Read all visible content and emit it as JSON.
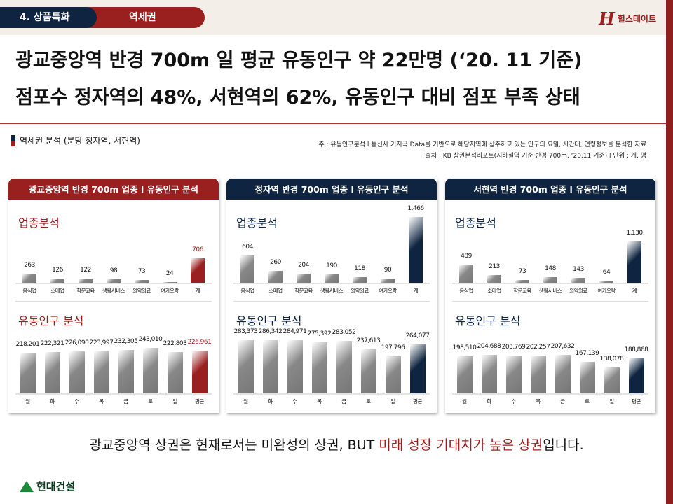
{
  "header": {
    "section_tab": "4. 상품특화",
    "sub_tab": "역세권",
    "logo_text": "힐스테이트",
    "logo_mark": "H"
  },
  "headline": {
    "line1": "광교중앙역 반경 700m 일 평균 유동인구 약 22만명 (‘20. 11 기준)",
    "line2": "점포수 정자역의 48%, 서현역의 62%, 유동인구 대비 점포 부족 상태"
  },
  "section": {
    "title": "역세권 분석 (분당 정자역, 서현역)",
    "note1": "주 : 유동인구분석 l 통신사 기지국 Data를 기반으로 해당지역에 상주하고 있는 인구의 요일, 시간대, 연령정보를 분석한 자료",
    "note2": "출처 : KB 상권분석리포트(지하철역 기준 반경 700m, ‘20.11 기준) l 단위 : 개, 명"
  },
  "colors": {
    "red": "#9a2020",
    "navy": "#0e2440"
  },
  "chart_data": [
    {
      "panel": "광교중앙역 반경 700m 업종 l 유동인구 분석",
      "accent": "#9a2020",
      "charts": [
        {
          "type": "bar",
          "title": "업종분석",
          "categories": [
            "음식업",
            "소매업",
            "학문교육",
            "생활서비스",
            "의약의료",
            "여가오락",
            "계"
          ],
          "values": [
            263,
            126,
            122,
            98,
            73,
            24,
            706
          ],
          "labels": [
            "263",
            "126",
            "122",
            "98",
            "73",
            "24",
            "706"
          ],
          "ylim": [
            0,
            1900
          ]
        },
        {
          "type": "bar",
          "title": "유동인구 분석",
          "categories": [
            "월",
            "화",
            "수",
            "목",
            "금",
            "토",
            "일",
            "평균"
          ],
          "values": [
            218201,
            222321,
            226090,
            223997,
            232305,
            243010,
            222803,
            226961
          ],
          "labels": [
            "218,201",
            "222,321",
            "226,090",
            "223,997",
            "232,305",
            "243,010",
            "222,803",
            "226,961"
          ],
          "ylim": [
            0,
            300000
          ]
        }
      ]
    },
    {
      "panel": "정자역 반경 700m 업종 l 유동인구 분석",
      "accent": "#0e2440",
      "charts": [
        {
          "type": "bar",
          "title": "업종분석",
          "categories": [
            "음식업",
            "소매업",
            "학문교육",
            "생활서비스",
            "의약의료",
            "여가오락",
            "계"
          ],
          "values": [
            604,
            260,
            204,
            190,
            118,
            90,
            1466
          ],
          "labels": [
            "604",
            "260",
            "204",
            "190",
            "118",
            "90",
            "1,466"
          ],
          "ylim": [
            0,
            1466
          ]
        },
        {
          "type": "bar",
          "title": "유동인구 분석",
          "categories": [
            "월",
            "화",
            "수",
            "목",
            "금",
            "토",
            "일",
            "평균"
          ],
          "values": [
            283373,
            286342,
            284971,
            275392,
            283052,
            237613,
            197796,
            264077
          ],
          "labels": [
            "283,373",
            "286,342",
            "284,971",
            "275,392",
            "283,052",
            "237,613",
            "197,796",
            "264,077"
          ],
          "ylim": [
            0,
            300000
          ]
        }
      ]
    },
    {
      "panel": "서현역 반경 700m 업종 l 유동인구 분석",
      "accent": "#0e2440",
      "charts": [
        {
          "type": "bar",
          "title": "업종분석",
          "categories": [
            "음식업",
            "소매업",
            "학문교육",
            "생활서비스",
            "의약의료",
            "여가오락",
            "계"
          ],
          "values": [
            489,
            213,
            73,
            148,
            143,
            64,
            1130
          ],
          "labels": [
            "489",
            "213",
            "73",
            "148",
            "143",
            "64",
            "1,130"
          ],
          "ylim": [
            0,
            1800
          ]
        },
        {
          "type": "bar",
          "title": "유동인구 분석",
          "categories": [
            "월",
            "화",
            "수",
            "목",
            "금",
            "토",
            "일",
            "평균"
          ],
          "values": [
            198510,
            204688,
            203769,
            202257,
            207632,
            167139,
            138078,
            188868
          ],
          "labels": [
            "198,510",
            "204,688",
            "203,769",
            "202,257",
            "207,632",
            "167,139",
            "138,078",
            "188,868"
          ],
          "ylim": [
            0,
            300000
          ]
        }
      ]
    }
  ],
  "bottom": {
    "text1": "광교중앙역 상권은 현재로서는 미완성의 상권, BUT ",
    "highlight": "미래 성장 기대치가 높은 상권",
    "text2": "입니다."
  },
  "footer": {
    "brand": "현대건설"
  }
}
